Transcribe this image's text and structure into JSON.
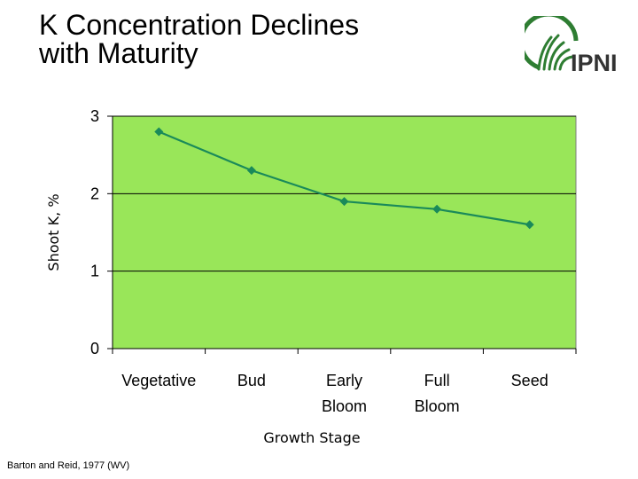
{
  "title": {
    "line1": "K Concentration Declines",
    "line2": "with Maturity"
  },
  "logo": {
    "text": "IPNI",
    "color": "#2e7d32",
    "text_color": "#333333"
  },
  "source": "Barton and Reid, 1977 (WV)",
  "chart_data": {
    "type": "line",
    "categories": [
      [
        "Vegetative"
      ],
      [
        "Bud"
      ],
      [
        "Early",
        "Bloom"
      ],
      [
        "Full",
        "Bloom"
      ],
      [
        "Seed"
      ]
    ],
    "series": [
      {
        "name": "Shoot K, %",
        "values": [
          2.8,
          2.3,
          1.9,
          1.8,
          1.6
        ],
        "color": "#1a8a5a",
        "marker": "diamond"
      }
    ],
    "xlabel": "Growth Stage",
    "ylabel": "Shoot K, %",
    "ylim": [
      0,
      3
    ],
    "yticks": [
      0,
      1,
      2,
      3
    ],
    "grid": true,
    "legend": false,
    "plot_background": "#99e659",
    "grid_color": "#000000"
  }
}
